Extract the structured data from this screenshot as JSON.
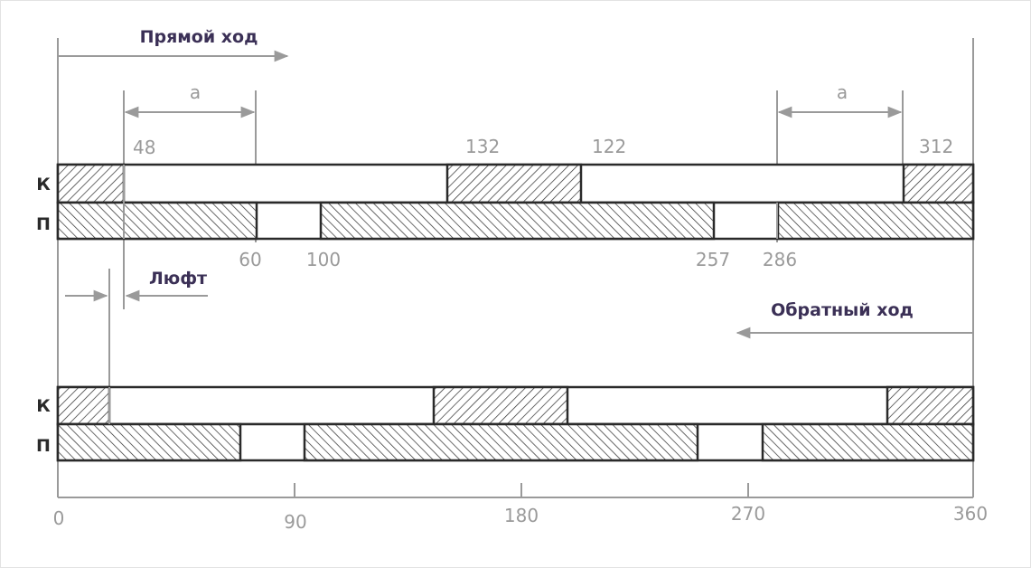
{
  "forward": {
    "title": "Прямой ход",
    "clearance_label": "а",
    "marks": {
      "m48": "48",
      "m132": "132",
      "m122": "122",
      "m312": "312",
      "m60": "60",
      "m100": "100",
      "m257": "257",
      "m286": "286"
    }
  },
  "backlash": {
    "label": "Люфт"
  },
  "reverse": {
    "title": "Обратный ход"
  },
  "rows": {
    "k": "К",
    "p": "П"
  },
  "axis": {
    "ticks": [
      "0",
      "90",
      "180",
      "270",
      "360"
    ]
  },
  "colors": {
    "accent_title": "#3b3056",
    "bar_stroke": "#2a2a2a",
    "guide": "#9a9a9a"
  }
}
